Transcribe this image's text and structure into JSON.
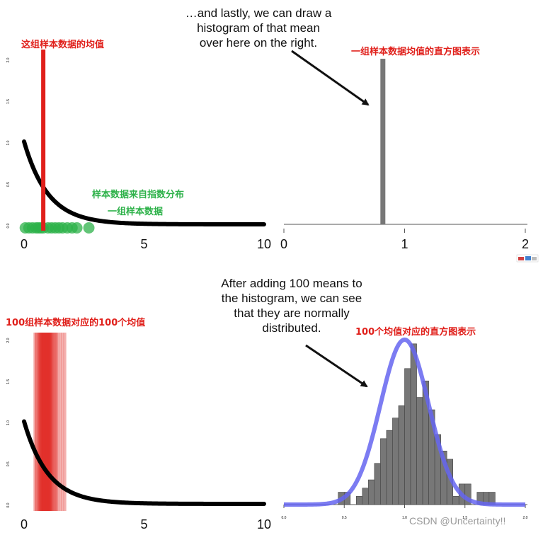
{
  "annotations": {
    "top_note": "…and lastly, we can draw a\nhistogram of that mean\nover here on the right.",
    "bottom_note": "After adding 100 means to\nthe histogram, we can see\nthat they are normally\ndistributed.",
    "sample_mean_label": "这组样本数据的均值",
    "top_hist_label": "一组样本数据均值的直方图表示",
    "exp_source_label": "样本数据来自指数分布",
    "one_sample_label": "一组样本数据",
    "hundred_means_label": "100组样本数据对应的100个均值",
    "bottom_hist_label": "100个均值对应的直方图表示"
  },
  "watermark": "CSDN @Uncertainty!!",
  "colors": {
    "curve": "#000000",
    "mean_line": "#e0201b",
    "sample_points": "#2eb24a",
    "bars": "#777777",
    "normal_fit": "#6565f0",
    "red_label": "#e0201b",
    "green_label": "#2eb24a"
  },
  "chart_data": [
    {
      "type": "line",
      "panel": "top-left",
      "series": [
        {
          "function": "exp(-x)",
          "x_range": [
            0,
            10
          ]
        }
      ],
      "xticks": [
        "0",
        "5",
        "10"
      ],
      "yticks": [
        "0.0",
        "0.5",
        "1.0",
        "1.5",
        "2.0"
      ],
      "xlim": [
        0,
        10
      ],
      "ylim": [
        0,
        2
      ],
      "sample_points_x": [
        0.05,
        0.2,
        0.35,
        0.5,
        0.6,
        0.7,
        0.8,
        1.0,
        1.15,
        1.3,
        1.45,
        1.6,
        1.8,
        2.0,
        2.2,
        2.7
      ],
      "sample_mean": 0.8
    },
    {
      "type": "bar",
      "panel": "top-right",
      "bars": [
        {
          "x": 0.82,
          "value": 2
        }
      ],
      "xticks": [
        "0",
        "1",
        "2"
      ],
      "xlim": [
        0,
        2
      ],
      "ylim": [
        0,
        2
      ]
    },
    {
      "type": "line",
      "panel": "bottom-left",
      "series": [
        {
          "function": "exp(-x)",
          "x_range": [
            0,
            10
          ]
        }
      ],
      "xticks": [
        "0",
        "5",
        "10"
      ],
      "yticks": [
        "0.0",
        "0.5",
        "1.0",
        "1.5",
        "2.0"
      ],
      "xlim": [
        0,
        10
      ],
      "ylim": [
        0,
        2
      ],
      "mean_lines_x": [
        0.45,
        0.5,
        0.55,
        0.6,
        0.62,
        0.65,
        0.68,
        0.7,
        0.72,
        0.74,
        0.76,
        0.78,
        0.8,
        0.82,
        0.84,
        0.86,
        0.88,
        0.9,
        0.92,
        0.94,
        0.96,
        0.98,
        1.0,
        1.02,
        1.04,
        1.06,
        1.08,
        1.1,
        1.12,
        1.15,
        1.18,
        1.22,
        1.26,
        1.3,
        1.35,
        1.4,
        1.5,
        1.6,
        1.7
      ]
    },
    {
      "type": "bar",
      "panel": "bottom-right",
      "bin_width": 0.05,
      "bins_x": [
        0.45,
        0.5,
        0.55,
        0.6,
        0.65,
        0.7,
        0.75,
        0.8,
        0.85,
        0.9,
        0.95,
        1.0,
        1.05,
        1.1,
        1.15,
        1.2,
        1.25,
        1.3,
        1.35,
        1.4,
        1.45,
        1.5,
        1.55,
        1.6,
        1.65,
        1.7
      ],
      "values": [
        0.15,
        0.15,
        0,
        0.1,
        0.2,
        0.3,
        0.5,
        0.8,
        0.9,
        1.05,
        1.2,
        1.65,
        1.95,
        1.3,
        1.5,
        1.15,
        0.85,
        0.65,
        0.55,
        0.1,
        0.25,
        0.25,
        0,
        0.15,
        0.15,
        0.15
      ],
      "normal_fit": {
        "mean": 1.0,
        "sd": 0.2,
        "peak": 2.0
      },
      "xticks": [
        "0.0",
        "0.5",
        "1.0",
        "1.5",
        "2.0"
      ],
      "xlim": [
        0,
        2
      ],
      "ylim": [
        0,
        2
      ]
    }
  ]
}
